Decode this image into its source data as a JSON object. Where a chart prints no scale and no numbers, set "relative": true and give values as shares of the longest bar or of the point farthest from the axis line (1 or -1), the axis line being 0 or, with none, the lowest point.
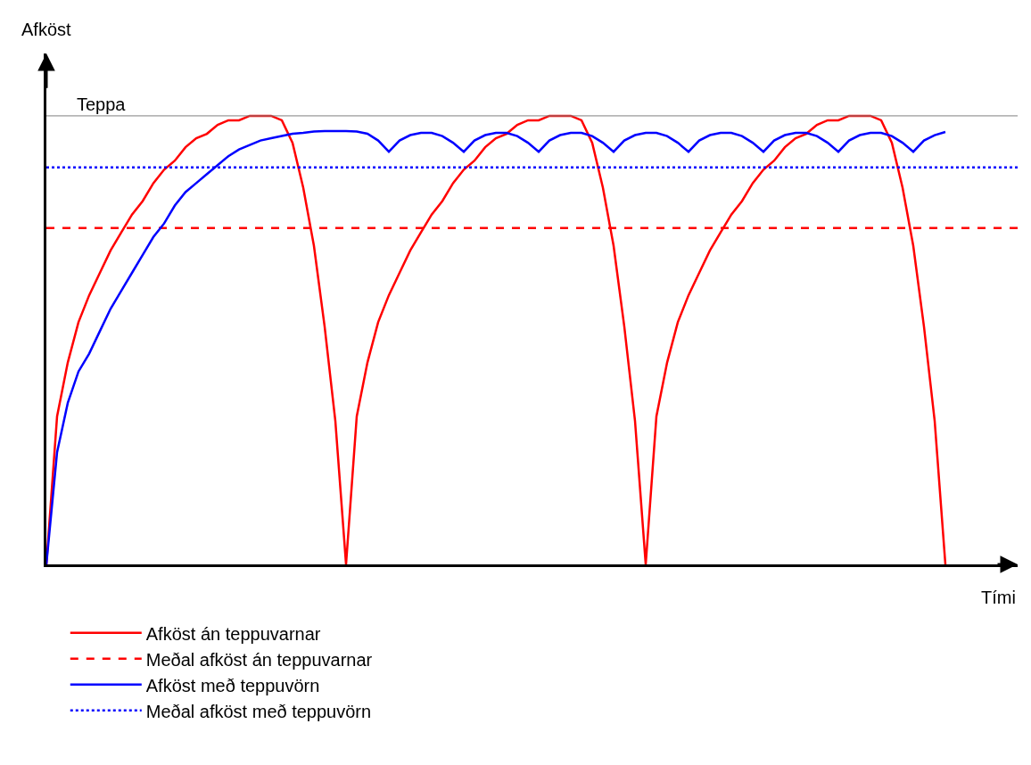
{
  "chart_data": {
    "type": "line",
    "relative": true,
    "xlabel": "Tími",
    "ylabel": "Afköst",
    "legend": "bottom",
    "marker": "none",
    "categories": [
      null,
      null,
      null,
      null,
      null,
      null,
      null,
      null,
      null,
      null,
      null,
      null,
      null,
      null,
      null,
      null,
      null,
      null,
      null,
      null,
      null,
      null,
      null,
      null,
      null,
      null,
      null,
      null,
      null,
      null,
      null,
      null,
      null,
      null,
      null,
      null,
      null,
      null,
      null,
      null,
      null,
      null,
      null,
      null,
      null,
      null,
      null,
      null,
      null,
      null,
      null,
      null,
      null,
      null,
      null,
      null,
      null,
      null,
      null,
      null,
      null,
      null,
      null,
      null,
      null,
      null,
      null,
      null,
      null,
      null,
      null,
      null,
      null,
      null,
      null,
      null,
      null,
      null,
      null,
      null,
      null,
      null,
      null,
      null,
      null
    ],
    "series": [
      {
        "name": "Afköst án teppuvarnar",
        "color": "#ff0000",
        "line_style": "solid",
        "values": [
          0,
          0.33,
          0.45,
          0.54,
          0.6,
          0.65,
          0.7,
          0.74,
          0.78,
          0.81,
          0.85,
          0.88,
          0.9,
          0.93,
          0.95,
          0.96,
          0.98,
          0.99,
          0.99,
          1.0,
          1.0,
          1.0,
          0.99,
          0.94,
          0.84,
          0.71,
          0.53,
          0.32,
          0,
          0.33,
          0.45,
          0.54,
          0.6,
          0.65,
          0.7,
          0.74,
          0.78,
          0.81,
          0.85,
          0.88,
          0.9,
          0.93,
          0.95,
          0.96,
          0.98,
          0.99,
          0.99,
          1.0,
          1.0,
          1.0,
          0.99,
          0.94,
          0.84,
          0.71,
          0.53,
          0.32,
          0,
          0.33,
          0.45,
          0.54,
          0.6,
          0.65,
          0.7,
          0.74,
          0.78,
          0.81,
          0.85,
          0.88,
          0.9,
          0.93,
          0.95,
          0.96,
          0.98,
          0.99,
          0.99,
          1.0,
          1.0,
          1.0,
          0.99,
          0.94,
          0.84,
          0.71,
          0.53,
          0.32,
          0
        ]
      },
      {
        "name": "Afköst með teppuvörn",
        "color": "#0000ff",
        "line_style": "solid",
        "values": [
          0,
          0.25,
          0.36,
          0.43,
          0.47,
          0.52,
          0.57,
          0.61,
          0.65,
          0.69,
          0.73,
          0.76,
          0.8,
          0.83,
          0.85,
          0.87,
          0.89,
          0.91,
          0.925,
          0.935,
          0.945,
          0.95,
          0.955,
          0.96,
          0.962,
          0.965,
          0.966,
          0.966,
          0.966,
          0.965,
          0.96,
          0.945,
          0.92,
          0.945,
          0.957,
          0.962,
          0.962,
          0.955,
          0.94,
          0.92,
          0.945,
          0.957,
          0.962,
          0.962,
          0.955,
          0.94,
          0.92,
          0.945,
          0.957,
          0.962,
          0.962,
          0.955,
          0.94,
          0.92,
          0.945,
          0.957,
          0.962,
          0.962,
          0.955,
          0.94,
          0.92,
          0.945,
          0.957,
          0.962,
          0.962,
          0.955,
          0.94,
          0.92,
          0.945,
          0.957,
          0.962,
          0.962,
          0.955,
          0.94,
          0.92,
          0.945,
          0.957,
          0.962,
          0.962,
          0.955,
          0.94,
          0.92,
          0.945,
          0.957,
          0.964
        ]
      }
    ],
    "ref_lines": [
      {
        "axis": "y",
        "value": 1,
        "label": "Teppa",
        "color": "#808080"
      },
      {
        "axis": "y",
        "value": 0.75,
        "label": "Meðal afköst án teppuvarnar",
        "color": "#ff0000",
        "line_style": "dashed"
      },
      {
        "axis": "y",
        "value": 0.885,
        "label": "Meðal afköst með teppuvörn",
        "color": "#0000ff",
        "line_style": "dotted"
      }
    ]
  }
}
